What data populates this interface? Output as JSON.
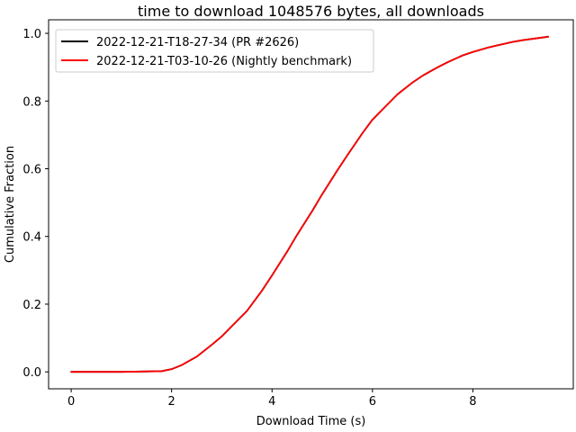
{
  "chart_data": {
    "type": "line",
    "title": "time to download 1048576 bytes, all downloads",
    "xlabel": "Download Time (s)",
    "ylabel": "Cumulative Fraction",
    "xlim": [
      -0.45,
      10.0
    ],
    "ylim": [
      -0.05,
      1.04
    ],
    "xticks": [
      0,
      2,
      4,
      6,
      8
    ],
    "yticks": [
      0.0,
      0.2,
      0.4,
      0.6,
      0.8,
      1.0
    ],
    "xtick_labels": [
      "0",
      "2",
      "4",
      "6",
      "8"
    ],
    "ytick_labels": [
      "0.0",
      "0.2",
      "0.4",
      "0.6",
      "0.8",
      "1.0"
    ],
    "grid": false,
    "legend_position": "top-left",
    "series": [
      {
        "name": "2022-12-21-T18-27-34 (PR #2626)",
        "color": "#000000",
        "x": [
          0,
          1.0,
          1.8,
          2.0,
          2.2,
          2.5,
          2.8,
          3.0,
          3.2,
          3.5,
          3.8,
          4.0,
          4.3,
          4.5,
          4.8,
          5.0,
          5.3,
          5.5,
          5.8,
          6.0,
          6.3,
          6.5,
          6.8,
          7.0,
          7.3,
          7.5,
          7.8,
          8.0,
          8.3,
          8.5,
          8.8,
          9.0,
          9.5
        ],
        "y": [
          0.0,
          0.0,
          0.002,
          0.008,
          0.02,
          0.045,
          0.08,
          0.105,
          0.135,
          0.18,
          0.24,
          0.285,
          0.355,
          0.405,
          0.475,
          0.525,
          0.595,
          0.64,
          0.705,
          0.745,
          0.79,
          0.82,
          0.855,
          0.875,
          0.9,
          0.915,
          0.935,
          0.945,
          0.958,
          0.965,
          0.975,
          0.98,
          0.99
        ]
      },
      {
        "name": "2022-12-21-T03-10-26 (Nightly benchmark)",
        "color": "#ff0000",
        "x": [
          0,
          1.0,
          1.8,
          2.0,
          2.2,
          2.5,
          2.8,
          3.0,
          3.2,
          3.5,
          3.8,
          4.0,
          4.3,
          4.5,
          4.8,
          5.0,
          5.3,
          5.5,
          5.8,
          6.0,
          6.3,
          6.5,
          6.8,
          7.0,
          7.3,
          7.5,
          7.8,
          8.0,
          8.3,
          8.5,
          8.8,
          9.0,
          9.5
        ],
        "y": [
          0.0,
          0.0,
          0.002,
          0.008,
          0.02,
          0.045,
          0.08,
          0.105,
          0.135,
          0.18,
          0.24,
          0.285,
          0.355,
          0.405,
          0.475,
          0.525,
          0.595,
          0.64,
          0.705,
          0.745,
          0.79,
          0.82,
          0.855,
          0.875,
          0.9,
          0.915,
          0.935,
          0.945,
          0.958,
          0.965,
          0.975,
          0.98,
          0.99
        ]
      }
    ]
  }
}
